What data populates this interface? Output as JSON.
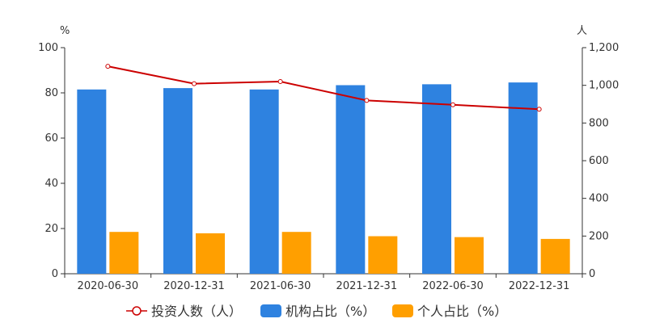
{
  "chart_data": {
    "type": "bar",
    "categories": [
      "2020-06-30",
      "2020-12-31",
      "2021-06-30",
      "2021-12-31",
      "2022-06-30",
      "2022-12-31"
    ],
    "series": [
      {
        "name": "机构占比（%）",
        "kind": "bar",
        "axis": "left",
        "color": "#2e82e0",
        "values": [
          81.5,
          82.1,
          81.5,
          83.4,
          83.8,
          84.6
        ]
      },
      {
        "name": "个人占比（%）",
        "kind": "bar",
        "axis": "left",
        "color": "#ff9f00",
        "values": [
          18.5,
          17.9,
          18.5,
          16.6,
          16.2,
          15.4
        ]
      },
      {
        "name": "投资人数（人）",
        "kind": "line",
        "axis": "right",
        "color": "#cc0000",
        "values": [
          1101,
          1009,
          1020,
          920,
          897,
          873
        ]
      }
    ],
    "y_left": {
      "unit": "%",
      "ylim": [
        0,
        100
      ],
      "ticks": [
        0,
        20,
        40,
        60,
        80,
        100
      ]
    },
    "y_right": {
      "unit": "人",
      "ylim": [
        0,
        1200
      ],
      "ticks": [
        "0",
        "200",
        "400",
        "600",
        "800",
        "1,000",
        "1,200"
      ]
    },
    "legend": {
      "position": "bottom",
      "order": [
        "投资人数（人）",
        "机构占比（%）",
        "个人占比（%）"
      ]
    },
    "grid": false
  }
}
